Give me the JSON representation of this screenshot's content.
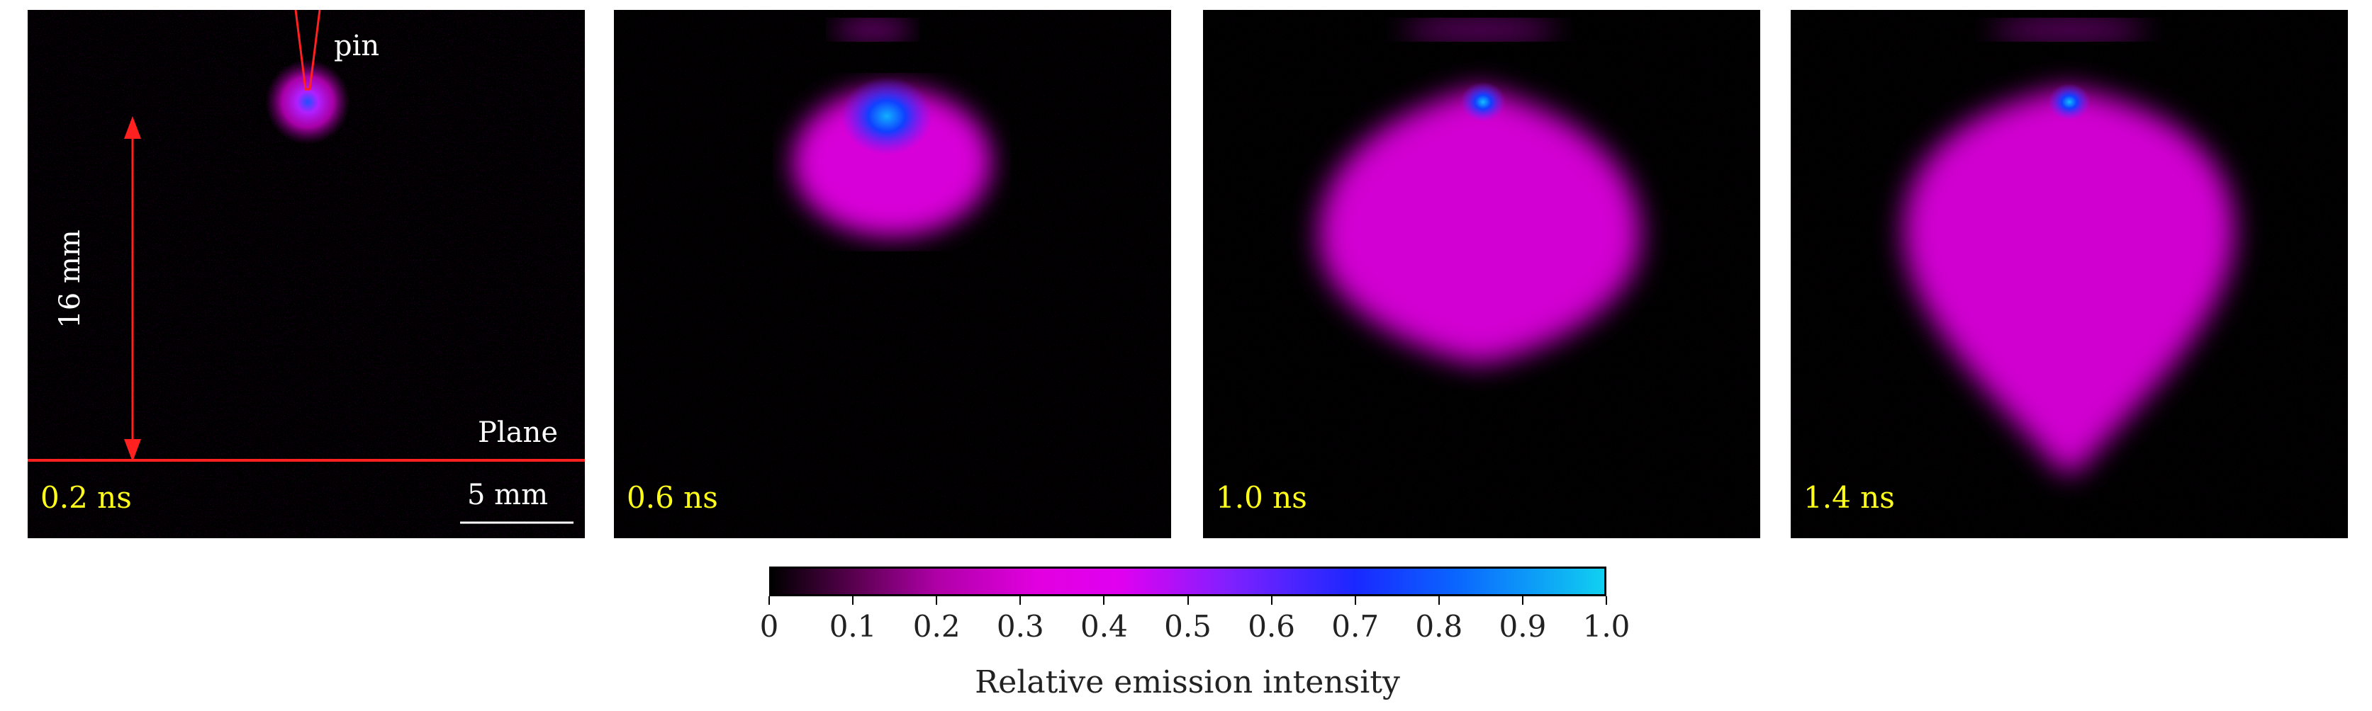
{
  "panels": [
    {
      "time": "0.2 ns",
      "pin_label": "pin",
      "gap_label": "16 mm",
      "plane_label": "Plane",
      "scale_label": "5 mm"
    },
    {
      "time": "0.6 ns"
    },
    {
      "time": "1.0 ns"
    },
    {
      "time": "1.4 ns"
    }
  ],
  "colorbar": {
    "title": "Relative emission intensity",
    "ticks": [
      "0",
      "0.1",
      "0.2",
      "0.3",
      "0.4",
      "0.5",
      "0.6",
      "0.7",
      "0.8",
      "0.9",
      "1.0"
    ]
  },
  "colors": {
    "time_label": "#ffff1a",
    "annotation": "#ff2020",
    "discharge": "#e000e0",
    "core": "#1060ff"
  }
}
